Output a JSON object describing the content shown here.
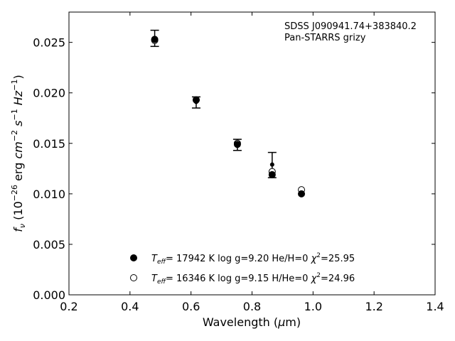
{
  "chart_data": {
    "type": "scatter",
    "xlabel": "Wavelength (μm)",
    "ylabel": "fν (10⁻²⁶ erg cm⁻² s⁻¹ Hz⁻¹)",
    "xlim": [
      0.2,
      1.4
    ],
    "ylim": [
      0.0,
      0.028
    ],
    "x_ticks": [
      "0.2",
      "0.4",
      "0.6",
      "0.8",
      "1.0",
      "1.2",
      "1.4"
    ],
    "y_ticks": [
      "0.000",
      "0.005",
      "0.010",
      "0.015",
      "0.020",
      "0.025"
    ],
    "annotations": [
      "SDSS J090941.74+383840.2",
      "Pan-STARRS grizy"
    ],
    "observed": {
      "x": [
        0.481,
        0.617,
        0.752,
        0.866,
        0.962
      ],
      "y": [
        0.0254,
        0.0191,
        0.0148,
        0.0129,
        null
      ],
      "y_err_low": [
        0.0246,
        0.0185,
        0.0143,
        0.0116,
        null
      ],
      "y_err_high": [
        0.0262,
        0.0196,
        0.0154,
        0.0141,
        null
      ]
    },
    "series": [
      {
        "name": "T_eff= 17942 K  log g=9.20  He/H=0  χ²=25.95",
        "marker": "filled",
        "x": [
          0.481,
          0.617,
          0.752,
          0.866,
          0.962
        ],
        "y": [
          0.0253,
          0.0193,
          0.0149,
          0.0119,
          0.01
        ]
      },
      {
        "name": "T_eff= 16346 K  log g=9.15  H/He=0  χ²=24.96",
        "marker": "open",
        "x": [
          0.481,
          0.617,
          0.752,
          0.866,
          0.962
        ],
        "y": [
          0.0252,
          0.0193,
          0.015,
          0.0122,
          0.0104
        ]
      }
    ],
    "legend_placement": "lower-center",
    "grid": false
  }
}
